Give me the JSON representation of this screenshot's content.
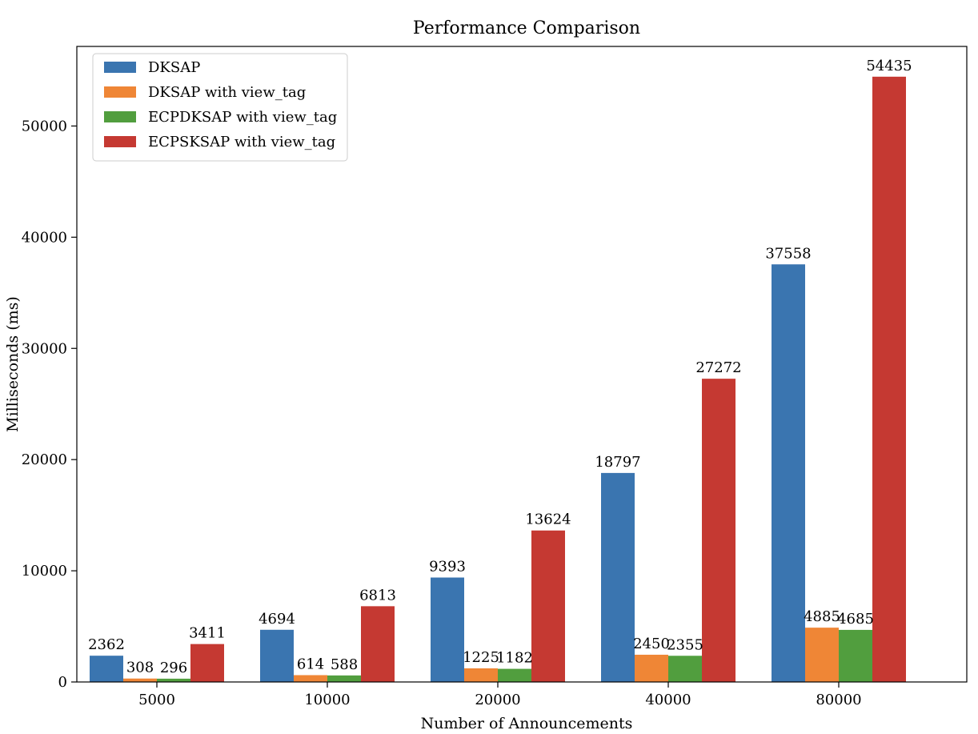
{
  "chart_data": {
    "type": "bar",
    "title": "Performance Comparison",
    "xlabel": "Number of Announcements",
    "ylabel": "Milliseconds (ms)",
    "categories": [
      "5000",
      "10000",
      "20000",
      "40000",
      "80000"
    ],
    "series": [
      {
        "name": "DKSAP",
        "color": "#3a75b0",
        "values": [
          2362,
          4694,
          9393,
          18797,
          37558
        ]
      },
      {
        "name": "DKSAP with view_tag",
        "color": "#ef8636",
        "values": [
          308,
          614,
          1225,
          2450,
          4885
        ]
      },
      {
        "name": "ECPDKSAP with view_tag",
        "color": "#519e3e",
        "values": [
          296,
          588,
          1182,
          2355,
          4685
        ]
      },
      {
        "name": "ECPSKSAP with view_tag",
        "color": "#c53932",
        "values": [
          3411,
          6813,
          13624,
          27272,
          54435
        ]
      }
    ],
    "ylim": [
      0,
      57157
    ],
    "yticks": [
      0,
      10000,
      20000,
      30000,
      40000,
      50000
    ],
    "grid": false,
    "legend_position": "top-left"
  }
}
